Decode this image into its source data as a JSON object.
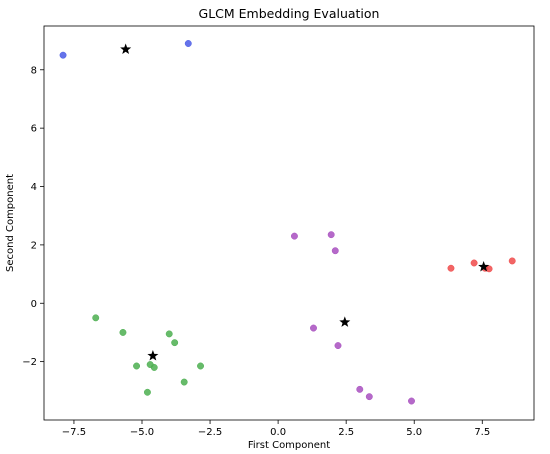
{
  "chart_data": {
    "type": "scatter",
    "title": "GLCM Embedding Evaluation",
    "xlabel": "First Component",
    "ylabel": "Second Component",
    "xlim": [
      -8.6,
      9.4
    ],
    "ylim": [
      -4.0,
      9.5
    ],
    "x_ticks": [
      -7.5,
      -5.0,
      -2.5,
      0.0,
      2.5,
      5.0,
      7.5
    ],
    "x_tick_labels": [
      "−7.5",
      "−5.0",
      "−2.5",
      "0.0",
      "2.5",
      "5.0",
      "7.5"
    ],
    "y_ticks": [
      -2,
      0,
      2,
      4,
      6,
      8
    ],
    "y_tick_labels": [
      "−2",
      "0",
      "2",
      "4",
      "6",
      "8"
    ],
    "grid": false,
    "series": [
      {
        "color": "#4a5be6",
        "points": [
          [
            -7.9,
            8.5
          ],
          [
            -3.3,
            8.9
          ]
        ]
      },
      {
        "color": "#4caf50",
        "points": [
          [
            -6.7,
            -0.5
          ],
          [
            -5.7,
            -1.0
          ],
          [
            -5.2,
            -2.15
          ],
          [
            -4.8,
            -3.05
          ],
          [
            -4.7,
            -2.1
          ],
          [
            -4.55,
            -2.2
          ],
          [
            -4.0,
            -1.05
          ],
          [
            -3.8,
            -1.35
          ],
          [
            -3.45,
            -2.7
          ],
          [
            -2.85,
            -2.15
          ]
        ]
      },
      {
        "color": "#a84fbf",
        "points": [
          [
            0.6,
            2.3
          ],
          [
            1.95,
            2.35
          ],
          [
            2.1,
            1.8
          ],
          [
            1.3,
            -0.85
          ],
          [
            2.2,
            -1.45
          ],
          [
            3.0,
            -2.95
          ],
          [
            3.35,
            -3.2
          ],
          [
            4.9,
            -3.35
          ]
        ]
      },
      {
        "color": "#f04a4a",
        "points": [
          [
            6.35,
            1.2
          ],
          [
            7.2,
            1.38
          ],
          [
            7.6,
            1.2
          ],
          [
            7.75,
            1.18
          ],
          [
            8.6,
            1.45
          ]
        ]
      }
    ],
    "centroids": {
      "marker": "star",
      "color": "#000000",
      "points": [
        [
          -5.6,
          8.7
        ],
        [
          -4.6,
          -1.8
        ],
        [
          2.45,
          -0.65
        ],
        [
          7.55,
          1.25
        ]
      ]
    }
  }
}
